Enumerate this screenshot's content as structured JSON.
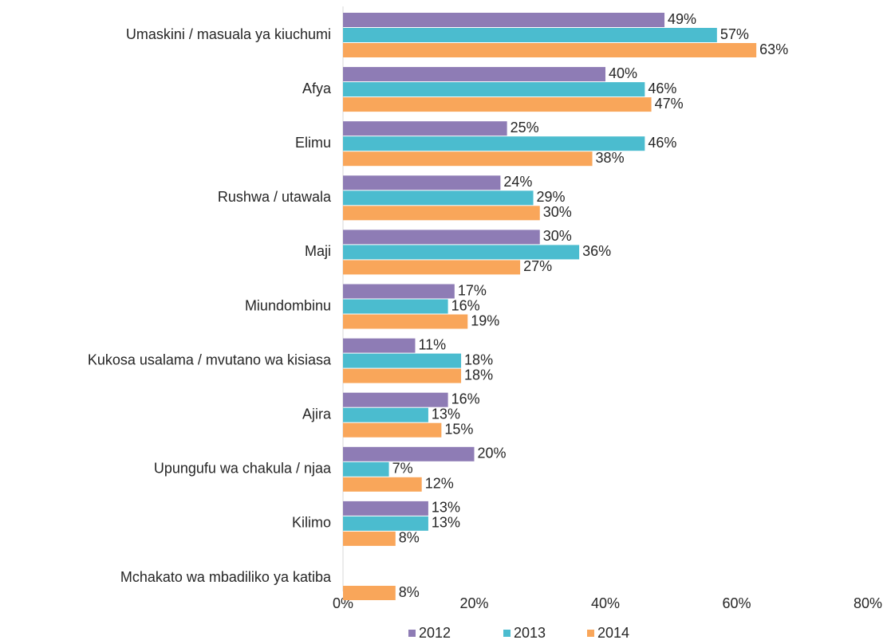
{
  "chart_data": {
    "type": "bar",
    "orientation": "horizontal",
    "categories": [
      "Umaskini / masuala ya kiuchumi",
      "Afya",
      "Elimu",
      "Rushwa / utawala",
      "Maji",
      "Miundombinu",
      "Kukosa usalama / mvutano wa kisiasa",
      "Ajira",
      "Upungufu wa chakula / njaa",
      "Kilimo",
      "Mchakato wa mbadiliko ya katiba"
    ],
    "series": [
      {
        "name": "2012",
        "color": "#8e7cb5",
        "values": [
          49,
          40,
          25,
          24,
          30,
          17,
          11,
          16,
          20,
          13,
          null
        ],
        "value_labels": [
          "49%",
          "40%",
          "25%",
          "24%",
          "30%",
          "17%",
          "11%",
          "16%",
          "20%",
          "13%",
          null
        ]
      },
      {
        "name": "2013",
        "color": "#4bbccf",
        "values": [
          57,
          46,
          46,
          29,
          36,
          16,
          18,
          13,
          7,
          13,
          null
        ],
        "value_labels": [
          "57%",
          "46%",
          "46%",
          "29%",
          "36%",
          "16%",
          "18%",
          "13%",
          "7%",
          "13%",
          null
        ]
      },
      {
        "name": "2014",
        "color": "#f9a65a",
        "values": [
          63,
          47,
          38,
          30,
          27,
          19,
          18,
          15,
          12,
          8,
          8
        ],
        "value_labels": [
          "63%",
          "47%",
          "38%",
          "30%",
          "27%",
          "19%",
          "18%",
          "15%",
          "12%",
          "8%",
          "8%"
        ]
      }
    ],
    "xlim": [
      0,
      80
    ],
    "xticks": [
      {
        "value": 0,
        "label": "0%"
      },
      {
        "value": 20,
        "label": "20%"
      },
      {
        "value": 40,
        "label": "40%"
      },
      {
        "value": 60,
        "label": "60%"
      },
      {
        "value": 80,
        "label": "80%"
      }
    ],
    "legend": "bottom"
  }
}
